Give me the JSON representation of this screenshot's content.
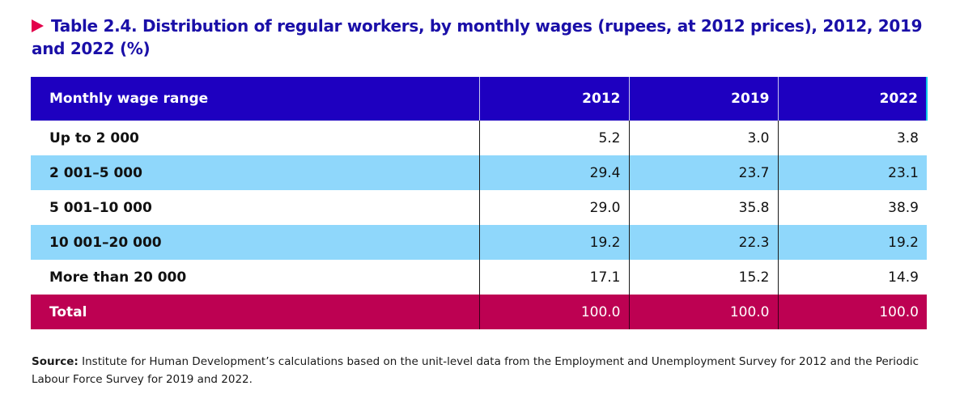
{
  "title": "Table 2.4. Distribution of regular workers, by monthly wages (rupees, at 2012 prices), 2012, 2019 and 2022 (%)",
  "colors": {
    "title": "#1a0fa8",
    "marker": "#e3004b",
    "header_bg": "#1e00c0",
    "band_bg": "#8fd7fb",
    "total_bg": "#bd0152"
  },
  "table": {
    "headers": [
      "Monthly wage range",
      "2012",
      "2019",
      "2022"
    ],
    "rows": [
      {
        "label": "Up to 2 000",
        "values": [
          "5.2",
          "3.0",
          "3.8"
        ]
      },
      {
        "label": "2 001–5 000",
        "values": [
          "29.4",
          "23.7",
          "23.1"
        ]
      },
      {
        "label": "5 001–10 000",
        "values": [
          "29.0",
          "35.8",
          "38.9"
        ]
      },
      {
        "label": "10 001–20 000",
        "values": [
          "19.2",
          "22.3",
          "19.2"
        ]
      },
      {
        "label": "More than 20 000",
        "values": [
          "17.1",
          "15.2",
          "14.9"
        ]
      }
    ],
    "total": {
      "label": "Total",
      "values": [
        "100.0",
        "100.0",
        "100.0"
      ]
    }
  },
  "source": {
    "label": "Source:",
    "text": "Institute for Human Development’s calculations based on the unit-level data from the Employment and Unemployment Survey for 2012 and the Periodic Labour Force Survey for 2019 and 2022."
  }
}
